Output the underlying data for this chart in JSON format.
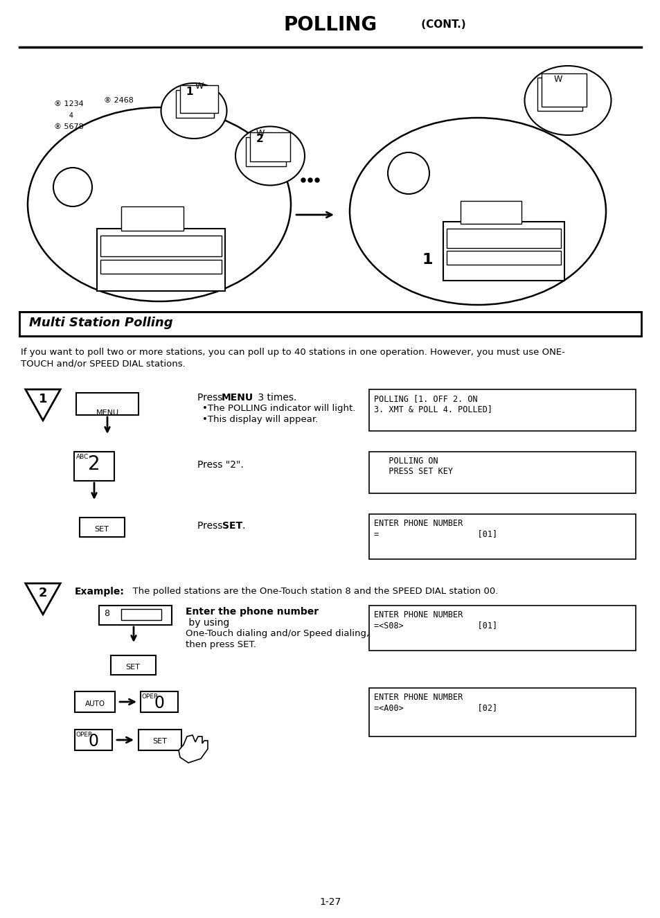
{
  "title_bold": "POLLING",
  "title_small": " (CONT.)",
  "section_title": "Multi Station Polling",
  "intro_text": "If you want to poll two or more stations, you can poll up to 40 stations in one operation. However, you must use ONE-\nTOUCH and/or SPEED DIAL stations.",
  "display1_line1": "POLLING [1. OFF 2. ON",
  "display1_line2": "3. XMT & POLL 4. POLLED]",
  "display2_line1": "   POLLING ON",
  "display2_line2": "   PRESS SET KEY",
  "display3_line1": "ENTER PHONE NUMBER",
  "display3_line2": "=                    [01]",
  "display4_line1": "ENTER PHONE NUMBER",
  "display4_line2": "=<S08>               [01]",
  "display5_line1": "ENTER PHONE NUMBER",
  "display5_line2": "=<A00>               [02]",
  "step2_example": "Example:  The polled stations are the One-Touch station 8 and the SPEED DIAL station 00.",
  "page_number": "1-27",
  "bg_color": "#ffffff"
}
